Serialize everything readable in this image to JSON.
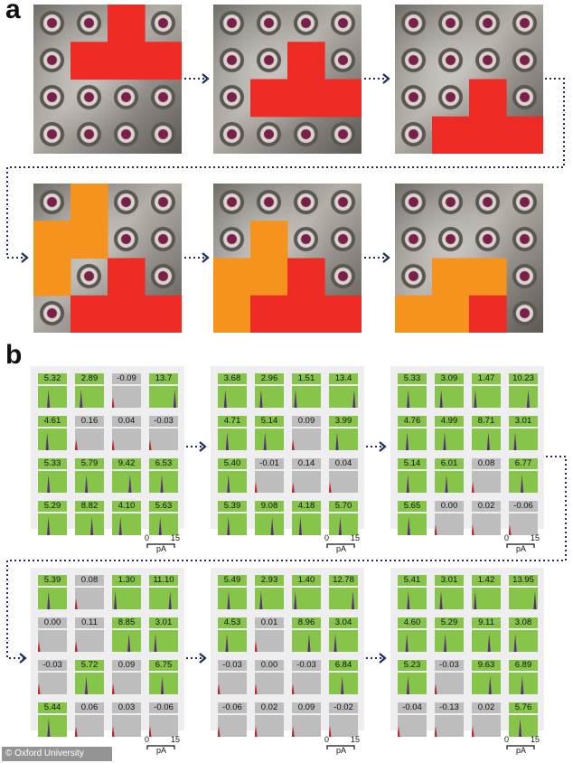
{
  "labels": {
    "a": "a",
    "b": "b"
  },
  "credit": "© Oxford University",
  "colors": {
    "red": "#ee2a24",
    "orange": "#f6931e",
    "green": "#86c44a",
    "gray": "#bdbdbd",
    "arrow": "#1f2f5a",
    "purple": "#5b2d7a"
  },
  "panel_a": {
    "frames": [
      {
        "shapes": [
          {
            "color": "red",
            "cells": [
              [
                2,
                0
              ],
              [
                1,
                1
              ],
              [
                2,
                1
              ],
              [
                3,
                1
              ]
            ]
          }
        ]
      },
      {
        "shapes": [
          {
            "color": "red",
            "cells": [
              [
                2,
                1
              ],
              [
                1,
                2
              ],
              [
                2,
                2
              ],
              [
                3,
                2
              ]
            ]
          }
        ]
      },
      {
        "shapes": [
          {
            "color": "red",
            "cells": [
              [
                2,
                2
              ],
              [
                1,
                3
              ],
              [
                2,
                3
              ],
              [
                3,
                3
              ]
            ]
          }
        ]
      },
      {
        "shapes": [
          {
            "color": "orange",
            "cells": [
              [
                1,
                0
              ],
              [
                0,
                1
              ],
              [
                1,
                1
              ],
              [
                0,
                2
              ]
            ]
          },
          {
            "color": "red",
            "cells": [
              [
                2,
                2
              ],
              [
                1,
                3
              ],
              [
                2,
                3
              ],
              [
                3,
                3
              ]
            ]
          }
        ]
      },
      {
        "shapes": [
          {
            "color": "orange",
            "cells": [
              [
                1,
                1
              ],
              [
                0,
                2
              ],
              [
                1,
                2
              ],
              [
                0,
                3
              ]
            ]
          },
          {
            "color": "red",
            "cells": [
              [
                2,
                2
              ],
              [
                1,
                3
              ],
              [
                2,
                3
              ],
              [
                3,
                3
              ]
            ]
          }
        ]
      },
      {
        "shapes": [
          {
            "color": "orange",
            "cells": [
              [
                1,
                2
              ],
              [
                2,
                2
              ],
              [
                0,
                3
              ],
              [
                1,
                3
              ]
            ]
          },
          {
            "color": "red",
            "cells": [
              [
                2,
                3
              ]
            ]
          }
        ]
      }
    ]
  },
  "panel_b": {
    "scale": {
      "zero": "0",
      "max": "15",
      "unit": "pA"
    },
    "grids": [
      [
        [
          "5.32",
          "2.89",
          "-0.09",
          "13.7"
        ],
        [
          "4.61",
          "0.16",
          "0.04",
          "-0.03"
        ],
        [
          "5.33",
          "5.79",
          "9.42",
          "6.53"
        ],
        [
          "5.29",
          "8.82",
          "4.10",
          "5.63"
        ]
      ],
      [
        [
          "3.68",
          "2.96",
          "1.51",
          "13.4"
        ],
        [
          "4.71",
          "5.14",
          "0.09",
          "3.99"
        ],
        [
          "5.40",
          "-0.01",
          "0.14",
          "0.04"
        ],
        [
          "5.39",
          "9.08",
          "4.18",
          "5.70"
        ]
      ],
      [
        [
          "5.33",
          "3.09",
          "1.47",
          "10.23"
        ],
        [
          "4.76",
          "4.99",
          "8.71",
          "3.01"
        ],
        [
          "5.14",
          "6.01",
          "0.08",
          "6.77"
        ],
        [
          "5.65",
          "0.00",
          "0.02",
          "-0.06"
        ]
      ],
      [
        [
          "5.39",
          "0.08",
          "1.30",
          "11.10"
        ],
        [
          "0.00",
          "0.11",
          "8.85",
          "3.01"
        ],
        [
          "-0.03",
          "5.72",
          "0.09",
          "6.75"
        ],
        [
          "5.44",
          "0.06",
          "0.03",
          "-0.06"
        ]
      ],
      [
        [
          "5.49",
          "2.93",
          "1.40",
          "12.78"
        ],
        [
          "4.53",
          "0.01",
          "8.96",
          "3.04"
        ],
        [
          "-0.03",
          "0.00",
          "-0.03",
          "6.84"
        ],
        [
          "-0.06",
          "0.02",
          "0.09",
          "-0.02"
        ]
      ],
      [
        [
          "5.41",
          "3.01",
          "1.42",
          "13.95"
        ],
        [
          "4.60",
          "5.29",
          "9.11",
          "3.08"
        ],
        [
          "5.23",
          "-0.03",
          "9.63",
          "6.89"
        ],
        [
          "-0.04",
          "-0.13",
          "0.02",
          "5.76"
        ]
      ]
    ]
  }
}
